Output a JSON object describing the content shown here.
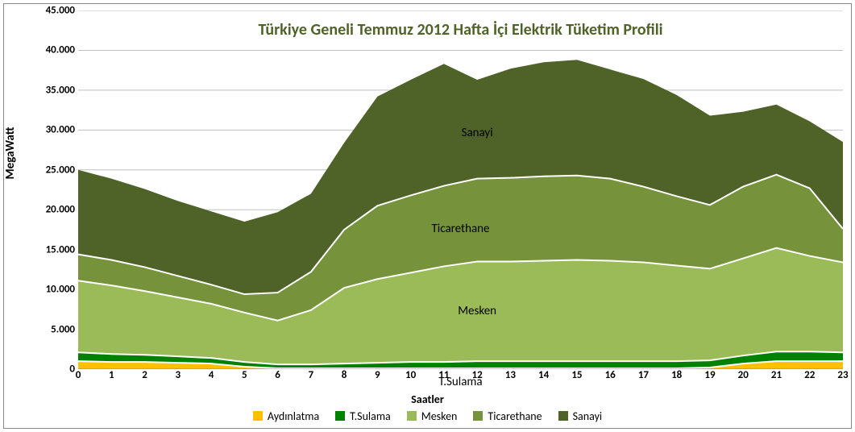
{
  "chart": {
    "type": "area-stacked",
    "title": "Türkiye Geneli Temmuz 2012 Hafta İçi Elektrik Tüketim Profili",
    "title_color": "#4f6228",
    "title_fontsize": 20,
    "y_axis": {
      "label": "MegaWatt",
      "min": 0,
      "max": 45000,
      "tick_step": 5000,
      "ticks": [
        0,
        5000,
        10000,
        15000,
        20000,
        25000,
        30000,
        35000,
        40000,
        45000
      ],
      "tick_labels": [
        "0",
        "5.000",
        "10.000",
        "15.000",
        "20.000",
        "25.000",
        "30.000",
        "35.000",
        "40.000",
        "45.000"
      ],
      "grid_color": "#bfbfbf",
      "label_fontweight": "bold"
    },
    "x_axis": {
      "label": "Saatler",
      "categories": [
        0,
        1,
        2,
        3,
        4,
        5,
        6,
        7,
        8,
        9,
        10,
        11,
        12,
        13,
        14,
        15,
        16,
        17,
        18,
        19,
        20,
        21,
        22,
        23
      ],
      "label_fontweight": "bold"
    },
    "series": [
      {
        "name": "Aydınlatma",
        "color": "#ffc000",
        "values": [
          1000,
          900,
          900,
          800,
          700,
          300,
          100,
          100,
          100,
          100,
          100,
          100,
          100,
          100,
          100,
          100,
          100,
          100,
          100,
          200,
          700,
          1000,
          1000,
          1000
        ]
      },
      {
        "name": "T.Sulama",
        "color": "#008200",
        "values": [
          1100,
          1000,
          900,
          800,
          700,
          600,
          500,
          500,
          600,
          700,
          800,
          800,
          900,
          900,
          900,
          900,
          900,
          900,
          900,
          900,
          1000,
          1200,
          1200,
          1100
        ]
      },
      {
        "name": "Mesken",
        "color": "#9bbb59",
        "values": [
          9000,
          8600,
          8000,
          7400,
          6800,
          6200,
          5500,
          6800,
          9500,
          10500,
          11200,
          12000,
          12500,
          12500,
          12600,
          12700,
          12600,
          12400,
          12000,
          11500,
          12200,
          13000,
          12000,
          11300
        ]
      },
      {
        "name": "Ticarethane",
        "color": "#76933c",
        "values": [
          3300,
          3200,
          3000,
          2700,
          2400,
          2300,
          3500,
          4800,
          7300,
          9200,
          9700,
          10100,
          10400,
          10500,
          10600,
          10600,
          10300,
          9500,
          8700,
          8000,
          9000,
          9200,
          8500,
          4200
        ]
      },
      {
        "name": "Sanayi",
        "color": "#4f6228",
        "values": [
          10600,
          10200,
          9800,
          9400,
          9200,
          9100,
          10100,
          9800,
          10900,
          13700,
          14500,
          15300,
          12400,
          13700,
          14300,
          14500,
          13700,
          13500,
          12700,
          11200,
          9400,
          8800,
          8400,
          10900
        ]
      }
    ],
    "series_line": {
      "color": "#ffffff",
      "width": 2
    },
    "background_color": "#ffffff",
    "tick_fontsize": 13,
    "annotations": [
      {
        "text": "Sanayi",
        "x_hour": 12,
        "y_value": 30500
      },
      {
        "text": "Ticarethane",
        "x_hour": 11.5,
        "y_value": 18500
      },
      {
        "text": "Mesken",
        "x_hour": 12,
        "y_value": 8200
      },
      {
        "text": "T.Sulama",
        "x_hour": 11.5,
        "y_value": -700
      }
    ],
    "legend": {
      "items": [
        "Aydınlatma",
        "T.Sulama",
        "Mesken",
        "Ticarethane",
        "Sanayi"
      ]
    }
  }
}
